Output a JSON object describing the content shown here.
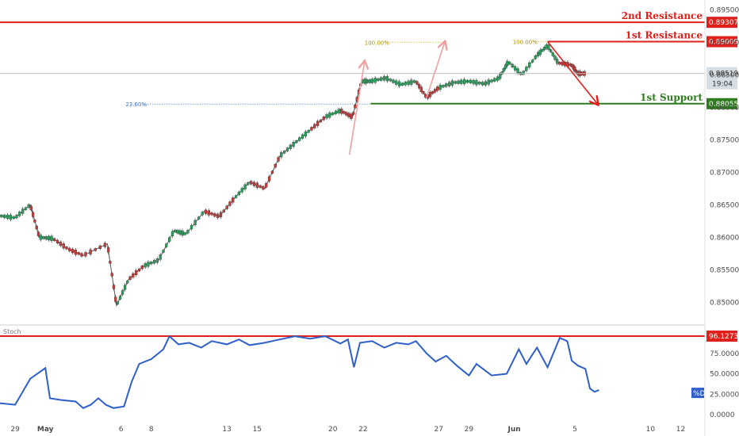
{
  "chart_data": {
    "type": "line",
    "price_axis": {
      "ticks": [
        "0.89500",
        "0.89000",
        "0.88500",
        "0.88000",
        "0.87500",
        "0.87000",
        "0.86500",
        "0.86000",
        "0.85500",
        "0.85000"
      ],
      "range": [
        0.8465,
        0.8965
      ]
    },
    "x_axis": {
      "ticks": [
        {
          "label": "29",
          "x": 1.0
        },
        {
          "label": "May",
          "x": 3.0
        },
        {
          "label": "6",
          "x": 8.0
        },
        {
          "label": "8",
          "x": 10.0
        },
        {
          "label": "13",
          "x": 15.0
        },
        {
          "label": "15",
          "x": 17.0
        },
        {
          "label": "20",
          "x": 22.0
        },
        {
          "label": "22",
          "x": 24.0
        },
        {
          "label": "27",
          "x": 29.0
        },
        {
          "label": "29",
          "x": 31.0
        },
        {
          "label": "Jun",
          "x": 34.0
        },
        {
          "label": "5",
          "x": 38.0
        },
        {
          "label": "10",
          "x": 43.0
        },
        {
          "label": "12",
          "x": 45.0
        }
      ],
      "range": [
        0,
        46.6
      ]
    },
    "price_series": [
      [
        0,
        0.8633
      ],
      [
        1,
        0.863
      ],
      [
        2,
        0.865
      ],
      [
        2.6,
        0.86
      ],
      [
        3.5,
        0.8598
      ],
      [
        4.5,
        0.8582
      ],
      [
        5.5,
        0.8572
      ],
      [
        7.1,
        0.859
      ],
      [
        7.7,
        0.8495
      ],
      [
        8.5,
        0.8535
      ],
      [
        9.5,
        0.8556
      ],
      [
        10.5,
        0.8565
      ],
      [
        11.5,
        0.861
      ],
      [
        12.3,
        0.8605
      ],
      [
        13.5,
        0.864
      ],
      [
        14.5,
        0.8632
      ],
      [
        15.5,
        0.866
      ],
      [
        16.5,
        0.8685
      ],
      [
        17.5,
        0.8675
      ],
      [
        18.5,
        0.8725
      ],
      [
        19.5,
        0.8745
      ],
      [
        20.5,
        0.8765
      ],
      [
        21.5,
        0.8785
      ],
      [
        22.5,
        0.8795
      ],
      [
        23.3,
        0.8785
      ],
      [
        23.9,
        0.884
      ],
      [
        24.5,
        0.884
      ],
      [
        25.5,
        0.8845
      ],
      [
        26.5,
        0.8835
      ],
      [
        27.5,
        0.884
      ],
      [
        28.2,
        0.8815
      ],
      [
        29,
        0.883
      ],
      [
        30,
        0.8838
      ],
      [
        31,
        0.884
      ],
      [
        32,
        0.8836
      ],
      [
        33,
        0.8845
      ],
      [
        33.6,
        0.887
      ],
      [
        34.5,
        0.885
      ],
      [
        35.5,
        0.888
      ],
      [
        36.2,
        0.8895
      ],
      [
        36.9,
        0.8868
      ],
      [
        37.8,
        0.8865
      ],
      [
        38.2,
        0.8852
      ],
      [
        38.7,
        0.8852
      ]
    ],
    "levels": [
      {
        "name": "2nd Resistance",
        "value": 0.89307,
        "label": "0.89307",
        "color": "#e0201b"
      },
      {
        "name": "1st Resistance",
        "value": 0.89009,
        "label": "0.89009",
        "color": "#e0201b"
      },
      {
        "name": "1st Support",
        "value": 0.88055,
        "label": "0.88055",
        "color": "#2f7d1e"
      }
    ],
    "current_price": {
      "value": 0.88519,
      "label": "0.88519",
      "time": "19:04"
    },
    "fib_labels": [
      {
        "text": "100.00%",
        "x": 24.1,
        "y": 0.89
      },
      {
        "text": "100.00%",
        "x": 33.9,
        "y": 0.8901
      },
      {
        "text": "23.60%",
        "x": 8.3,
        "y": 0.8805
      }
    ],
    "stoch": {
      "name": "Stoch",
      "ticks": [
        "75.0000",
        "50.0000",
        "25.0000",
        "0.0000"
      ],
      "range": [
        0,
        100
      ],
      "level": {
        "value": 96.1273,
        "label": "96.1273"
      },
      "tag": "%D",
      "series": [
        [
          0,
          14
        ],
        [
          1,
          12
        ],
        [
          2,
          44
        ],
        [
          3,
          57
        ],
        [
          3.3,
          20
        ],
        [
          4,
          18
        ],
        [
          5,
          16
        ],
        [
          5.5,
          8
        ],
        [
          6,
          12
        ],
        [
          6.5,
          20
        ],
        [
          7,
          12
        ],
        [
          7.5,
          8
        ],
        [
          8.2,
          10
        ],
        [
          8.7,
          40
        ],
        [
          9.2,
          62
        ],
        [
          10,
          68
        ],
        [
          10.8,
          80
        ],
        [
          11.2,
          96
        ],
        [
          11.8,
          86
        ],
        [
          12.5,
          88
        ],
        [
          13.3,
          82
        ],
        [
          14,
          90
        ],
        [
          15,
          86
        ],
        [
          15.8,
          92
        ],
        [
          16.5,
          85
        ],
        [
          17.5,
          88
        ],
        [
          18.5,
          92
        ],
        [
          19.5,
          96
        ],
        [
          20.5,
          93
        ],
        [
          21.5,
          96
        ],
        [
          22.5,
          87
        ],
        [
          23,
          92
        ],
        [
          23.4,
          58
        ],
        [
          23.8,
          88
        ],
        [
          24.6,
          90
        ],
        [
          25.4,
          82
        ],
        [
          26.2,
          88
        ],
        [
          27,
          86
        ],
        [
          27.5,
          90
        ],
        [
          28.2,
          75
        ],
        [
          28.8,
          65
        ],
        [
          29.5,
          72
        ],
        [
          30.2,
          60
        ],
        [
          31,
          48
        ],
        [
          31.5,
          62
        ],
        [
          32.5,
          48
        ],
        [
          33.5,
          50
        ],
        [
          34.3,
          80
        ],
        [
          34.8,
          62
        ],
        [
          35.5,
          82
        ],
        [
          36.2,
          58
        ],
        [
          37,
          94
        ],
        [
          37.5,
          90
        ],
        [
          37.8,
          66
        ],
        [
          38.2,
          60
        ],
        [
          38.7,
          56
        ],
        [
          39,
          32
        ],
        [
          39.3,
          28
        ],
        [
          39.6,
          30
        ]
      ]
    },
    "annotations": {
      "arrows": [
        {
          "from": [
            23.1,
            0.8727
          ],
          "to": [
            24.1,
            0.887
          ],
          "color": "#f0a0a0"
        },
        {
          "from": [
            28.2,
            0.8815
          ],
          "to": [
            29.4,
            0.89
          ],
          "color": "#f0a0a0"
        },
        {
          "from": [
            36.2,
            0.8901
          ],
          "to": [
            39.5,
            0.8805
          ],
          "color": "#e0201b"
        }
      ]
    }
  }
}
